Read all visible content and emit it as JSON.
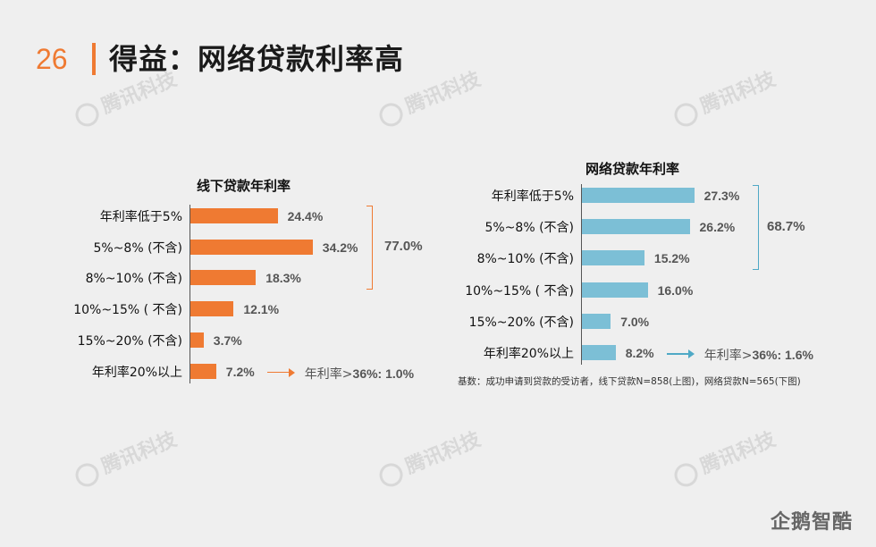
{
  "header": {
    "page_number": "26",
    "title": "得益：网络贷款利率高"
  },
  "watermark": "腾讯科技",
  "brand": "企鹅智酷",
  "colors": {
    "offline": "#ef7a32",
    "online": "#7cbfd6",
    "accent": "#ef7a32"
  },
  "footnote": "基数：成功申请到贷款的受访者，线下贷款N=858(上图)，网络贷款N=565(下图)",
  "chart_data": [
    {
      "type": "bar",
      "orientation": "horizontal",
      "title": "线下贷款年利率",
      "categories": [
        "年利率低于5%",
        "5%~8% (不含)",
        "8%~10% (不含)",
        "10%~15% ( 不含)",
        "15%~20% (不含)",
        "年利率20%以上"
      ],
      "values": [
        24.4,
        34.2,
        18.3,
        12.1,
        3.7,
        7.2
      ],
      "value_labels": [
        "24.4%",
        "34.2%",
        "18.3%",
        "12.1%",
        "3.7%",
        "7.2%"
      ],
      "bracket_total": "77.0%",
      "note_label": "年利率>",
      "note_value": "36%: 1.0%"
    },
    {
      "type": "bar",
      "orientation": "horizontal",
      "title": "网络贷款年利率",
      "categories": [
        "年利率低于5%",
        "5%~8% (不含)",
        "8%~10% (不含)",
        "10%~15% ( 不含)",
        "15%~20% (不含)",
        "年利率20%以上"
      ],
      "values": [
        27.3,
        26.2,
        15.2,
        16.0,
        7.0,
        8.2
      ],
      "value_labels": [
        "27.3%",
        "26.2%",
        "15.2%",
        "16.0%",
        "7.0%",
        "8.2%"
      ],
      "bracket_total": "68.7%",
      "note_label": "年利率>",
      "note_value": "36%: 1.6%"
    }
  ]
}
